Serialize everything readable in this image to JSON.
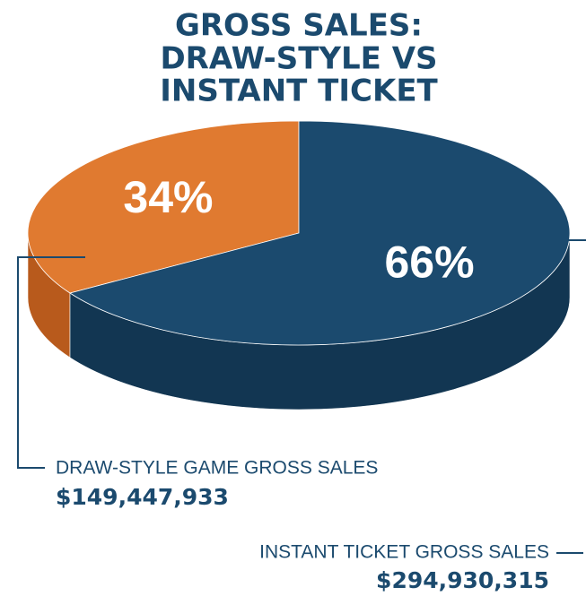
{
  "chart_data": {
    "type": "pie",
    "title": [
      "GROSS SALES:",
      "DRAW-STYLE VS",
      "INSTANT TICKET"
    ],
    "categories": [
      "DRAW-STYLE GAME GROSS SALES",
      "INSTANT TICKET GROSS SALES"
    ],
    "values": [
      34,
      66
    ],
    "value_labels": [
      "34%",
      "66%"
    ],
    "amounts": [
      "$149,447,933",
      "$294,930,315"
    ],
    "colors": [
      "#e07a30",
      "#1b4a6e"
    ],
    "side_colors": [
      "#b85a1c",
      "#123652"
    ]
  }
}
